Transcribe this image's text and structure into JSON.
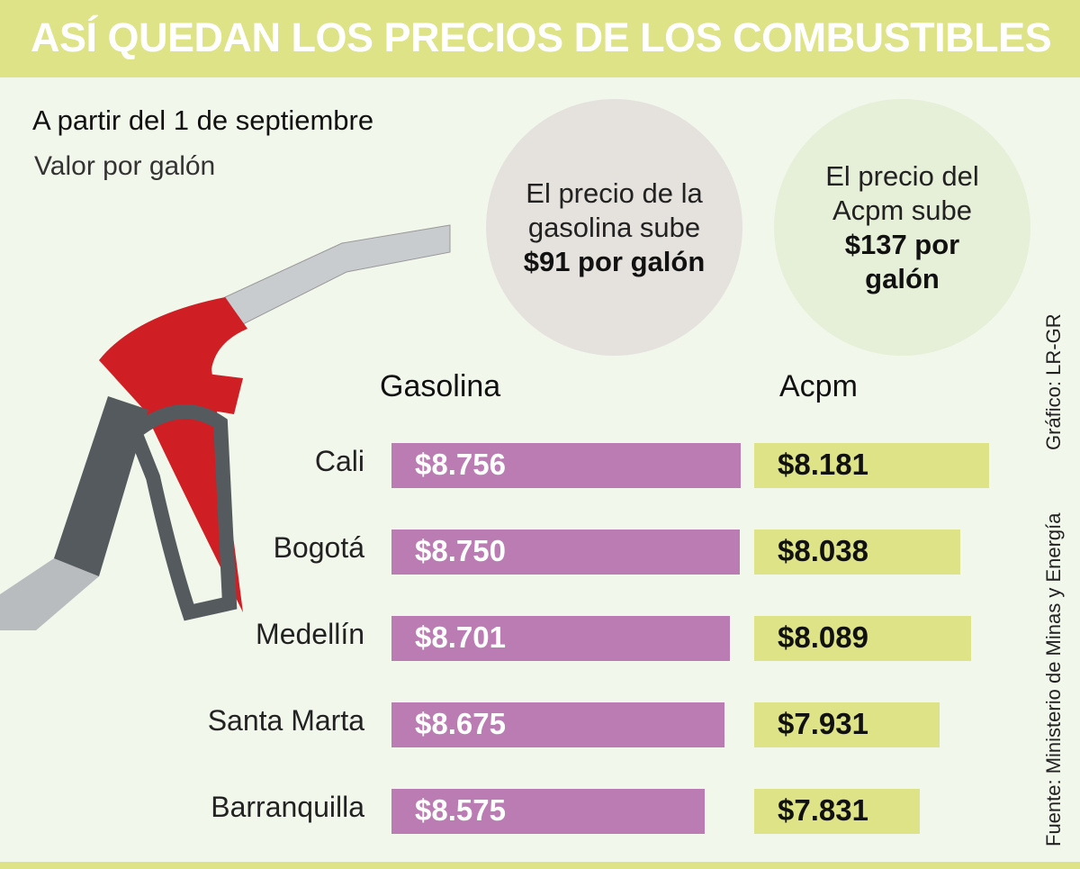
{
  "header": {
    "title": "ASÍ QUEDAN LOS PRECIOS DE LOS COMBUSTIBLES"
  },
  "subtitle": "A partir del 1 de septiembre",
  "unit": "Valor por galón",
  "callouts": [
    {
      "line1": "El precio de la",
      "line2": "gasolina sube",
      "line3": "$91 por galón"
    },
    {
      "line1": "El precio del",
      "line2": "Acpm sube",
      "line3": "$137 por",
      "line4": "galón"
    }
  ],
  "credit": "Gráfico: LR-GR",
  "source": "Fuente: Ministerio de Minas y Energía",
  "colors": {
    "gasolina": "#bb7bb3",
    "acpm": "#dde386",
    "background": "#f2f7ec"
  },
  "chart_data": {
    "type": "bar",
    "orientation": "horizontal",
    "title": "ASÍ QUEDAN LOS PRECIOS DE LOS COMBUSTIBLES",
    "categories": [
      "Cali",
      "Bogotá",
      "Medellín",
      "Santa Marta",
      "Barranquilla"
    ],
    "series": [
      {
        "name": "Gasolina",
        "values": [
          8756,
          8750,
          8701,
          8675,
          8575
        ],
        "labels": [
          "$8.756",
          "$8.750",
          "$8.701",
          "$8.675",
          "$8.575"
        ]
      },
      {
        "name": "Acpm",
        "values": [
          8181,
          8038,
          8089,
          7931,
          7831
        ],
        "labels": [
          "$8.181",
          "$8.038",
          "$8.089",
          "$7.931",
          "$7.831"
        ]
      }
    ],
    "xlim": [
      7000,
      9000
    ]
  }
}
